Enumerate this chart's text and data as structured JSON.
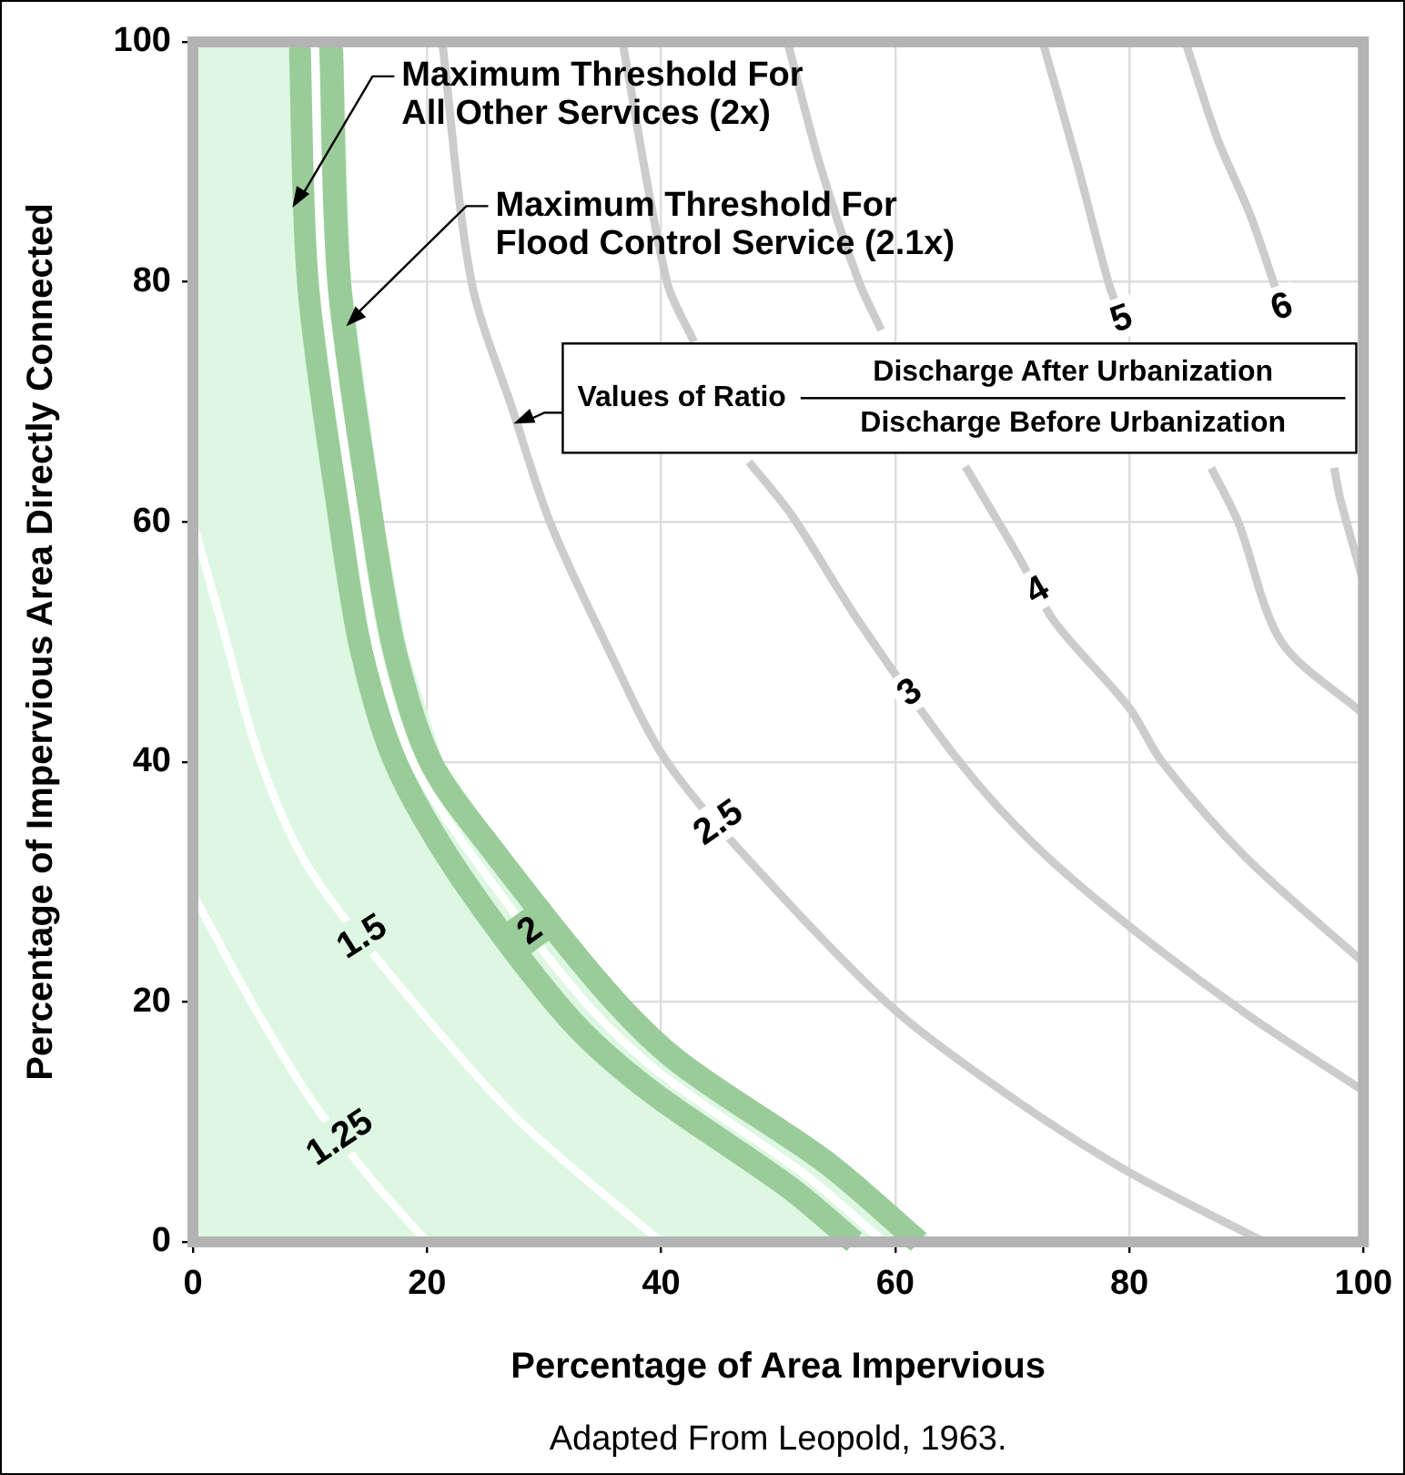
{
  "chart_data": {
    "type": "line",
    "xlabel": "Percentage of Area Impervious",
    "ylabel": "Percentage of Impervious Area Directly Connected",
    "xlim": [
      0,
      100
    ],
    "ylim": [
      0,
      100
    ],
    "xticks": [
      0,
      20,
      40,
      60,
      80,
      100
    ],
    "yticks": [
      0,
      20,
      40,
      60,
      80,
      100
    ],
    "grid": true,
    "legend": false,
    "marker": "none",
    "series": [
      {
        "type": "area",
        "color": "#ddf7e2",
        "x": [
          0,
          12.8,
          13.5,
          16.3,
          18.3,
          21.4,
          26.6,
          36.3,
          42.6,
          55.2,
          63.5
        ],
        "values": [
          100,
          100,
          80,
          60,
          49.4,
          40,
          32.8,
          21,
          15,
          6.7,
          0
        ]
      },
      {
        "name": "1.25",
        "color": "#ffffff",
        "x": [
          0,
          5,
          10,
          15,
          20
        ],
        "values": [
          29,
          20,
          12,
          5.5,
          0
        ]
      },
      {
        "name": "1.5",
        "color": "#ffffff",
        "x": [
          0,
          2.4,
          5.8,
          10,
          18.8,
          28,
          40
        ],
        "values": [
          60,
          51.7,
          40,
          31,
          20,
          10,
          0
        ]
      },
      {
        "color": "#99cc99",
        "x": [
          9.2,
          9.9,
          12.6,
          14.4,
          17.3,
          22.5,
          31.8,
          38.5,
          51,
          56.5
        ],
        "values": [
          100,
          80,
          60,
          49.4,
          40,
          31,
          19,
          13,
          4.5,
          0
        ]
      },
      {
        "color": "#99cc99",
        "x": [
          11.8,
          12.5,
          15.3,
          17.2,
          20.3,
          25.5,
          35.2,
          41.5,
          54,
          62
        ],
        "values": [
          100,
          80,
          60,
          49.4,
          40,
          32.8,
          21,
          15,
          6.7,
          0
        ]
      },
      {
        "name": "2",
        "color": "#ffffff",
        "x": [
          10.4,
          11.1,
          13.9,
          15.7,
          18.8,
          24,
          33.5,
          40,
          52.3,
          59
        ],
        "values": [
          100,
          80,
          60,
          49.4,
          40,
          32,
          20,
          14,
          5.6,
          0
        ]
      },
      {
        "name": "2.5",
        "color": "#cccccc",
        "x": [
          21.3,
          23.8,
          27.4,
          30.5,
          35.5,
          40.5,
          49.2,
          60,
          70,
          80,
          91.5
        ],
        "values": [
          100,
          80,
          69.1,
          60,
          49.4,
          40,
          30,
          19.3,
          12,
          5.8,
          0
        ]
      },
      {
        "name": "3",
        "color": "#cccccc",
        "x": [
          36.7,
          40.5,
          42.8,
          45,
          47.5,
          51.2,
          56.9,
          65.5,
          72,
          80,
          90,
          100
        ],
        "values": [
          100,
          80,
          75,
          null,
          65,
          60.5,
          51.7,
          40,
          33,
          26.3,
          19,
          12.6
        ]
      },
      {
        "name": "4",
        "color": "#cccccc",
        "x": [
          50.8,
          53.5,
          56.9,
          58.8,
          61,
          66,
          70.6,
          73.6,
          80,
          82.8,
          90,
          100
        ],
        "values": [
          100,
          90,
          80,
          76,
          null,
          64.6,
          57,
          51.7,
          44.5,
          40,
          32,
          23.3
        ]
      },
      {
        "name": "5",
        "color": "#cccccc",
        "x": [
          72.6,
          75.5,
          78.2,
          79.3,
          84.5,
          87,
          89.3,
          93,
          100
        ],
        "values": [
          100,
          90,
          80,
          77,
          null,
          64.5,
          60,
          50,
          44
        ]
      },
      {
        "name": "6",
        "color": "#cccccc",
        "x": [
          84.8,
          87.5,
          90.4,
          93,
          96,
          97.5,
          98,
          100
        ],
        "values": [
          100,
          92,
          85.4,
          78,
          null,
          64.5,
          62,
          55
        ]
      }
    ],
    "annotations": [
      {
        "text": "Maximum Threshold For\nAll Other Services (2x)",
        "x": 8.5,
        "y": 86.2
      },
      {
        "text": "Maximum Threshold For\nFlood Control Service (2.1x)",
        "x": 13.1,
        "y": 76.3
      },
      {
        "text": "Values of Ratio",
        "x": 27.4,
        "y": 69.1
      },
      "Discharge After Urbanization",
      "Discharge Before Urbanization",
      "Adapted From Leopold, 1963."
    ]
  }
}
